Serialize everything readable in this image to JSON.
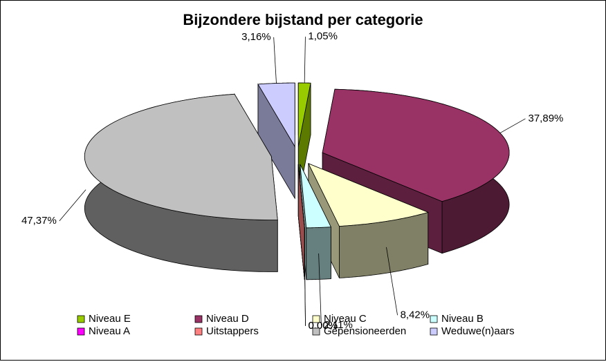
{
  "chart_data": {
    "type": "pie3d",
    "title": "Bijzondere bijstand per categorie",
    "categories": [
      "Niveau E",
      "Niveau D",
      "Niveau C",
      "Niveau B",
      "Niveau A",
      "Uitstappers",
      "Gepensioneerden",
      "Weduwe(n)aars"
    ],
    "values": [
      1.05,
      37.89,
      8.42,
      2.11,
      0.0,
      0.0,
      47.37,
      3.16
    ],
    "value_labels": [
      "1,05%",
      "37,89%",
      "8,42%",
      "2,11%",
      "0,00%",
      "0,00%",
      "47,37%",
      "3,16%"
    ],
    "colors": [
      "#99cc00",
      "#993366",
      "#ffffcc",
      "#ccffff",
      "#ff00ff",
      "#ff8080",
      "#c0c0c0",
      "#ccccff"
    ],
    "legend": "bottom"
  }
}
